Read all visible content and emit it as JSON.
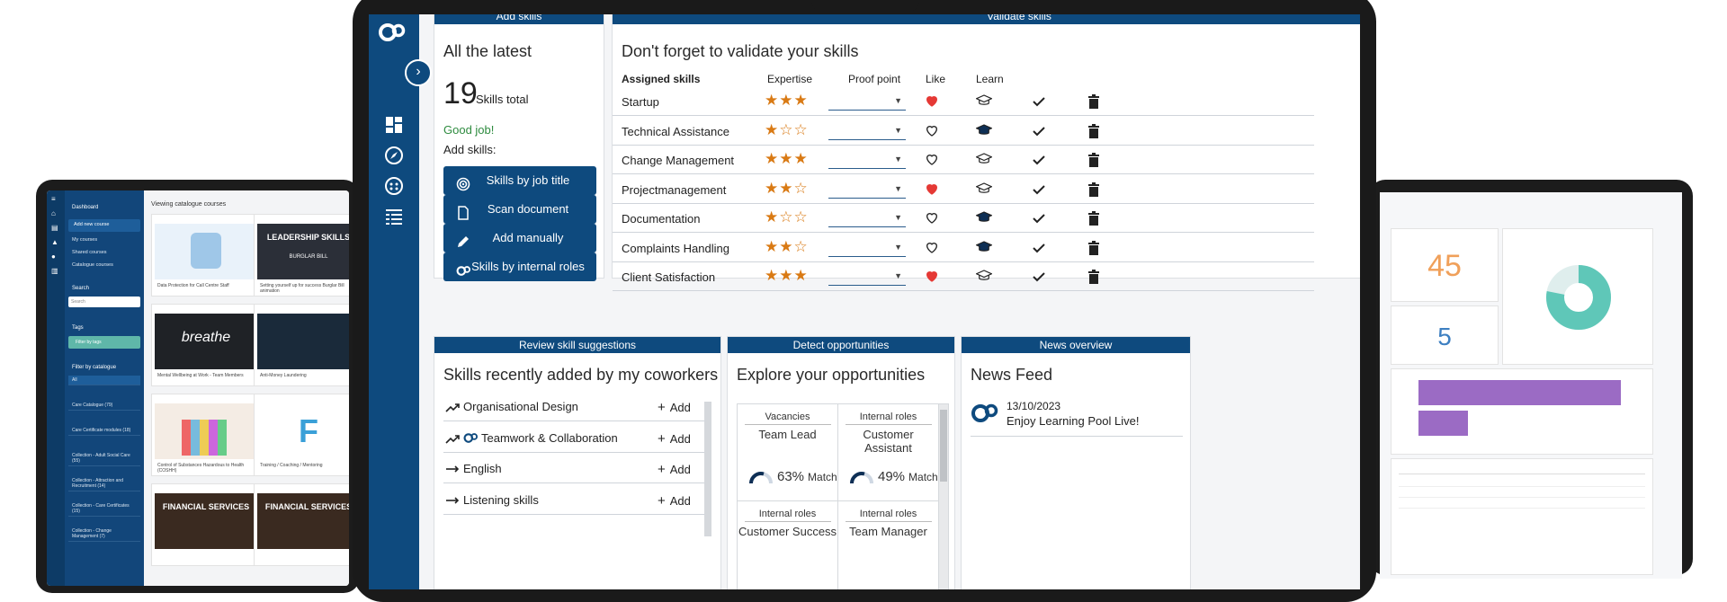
{
  "left": {
    "sidebar": {
      "dashboard": "Dashboard",
      "add_new_course": "Add new course",
      "my_courses": "My courses",
      "shared_courses": "Shared courses",
      "catalogue_courses": "Catalogue courses",
      "search_label": "Search",
      "search_placeholder": "Search",
      "tags_label": "Tags",
      "filter_by_tags": "Filter by tags",
      "filter_by_catalogue": "Filter by catalogue",
      "catalogues": [
        "All",
        "Care Catalogue (79)",
        "Care Certificate modules (18)",
        "Collection - Adult Social Care (55)",
        "Collection - Attraction and Recruitment (14)",
        "Collection - Care Certificates (15)",
        "Collection - Change Management (7)"
      ]
    },
    "main": {
      "title": "Viewing catalogue courses",
      "courses": [
        {
          "title": "Data Protection for Call Centre Staff"
        },
        {
          "title": "Setting yourself up for success Burglar Bill animation",
          "art": "LEADERSHIP SKILLS",
          "art_sub": "BURGLAR BILL"
        },
        {
          "title": "Mental Wellbeing at Work - Team Members",
          "art": "breathe"
        },
        {
          "title": "Anti-Money Laundering"
        },
        {
          "title": "Control of Substances Hazardous to Health (COSHH)"
        },
        {
          "title": "Training / Coaching / Mentoring"
        },
        {
          "title": "",
          "art": "FINANCIAL SERVICES"
        },
        {
          "title": "",
          "art": "FINANCIAL SERVICES"
        }
      ]
    }
  },
  "right": {
    "kpi1": "45",
    "kpi2": "5",
    "donut_fill": 0.78,
    "bars": [
      0.9,
      0.22
    ]
  },
  "tablet": {
    "add_skills": {
      "header": "Add skills",
      "heading": "All the latest",
      "total": "19",
      "total_label": "Skills total",
      "praise": "Good job!",
      "add_label": "Add skills:",
      "buttons": [
        {
          "label": "Skills by job title",
          "icon": "target-icon"
        },
        {
          "label": "Scan document",
          "icon": "document-icon"
        },
        {
          "label": "Add manually",
          "icon": "pencil-icon"
        },
        {
          "label": "Skills by internal roles",
          "icon": "logo-icon"
        }
      ]
    },
    "validate": {
      "header": "Validate skills",
      "heading": "Don't forget to validate your skills",
      "columns": [
        "Assigned skills",
        "Expertise",
        "Proof point",
        "Like",
        "Learn"
      ],
      "rows": [
        {
          "name": "Startup",
          "stars": "★★★",
          "liked": true,
          "learn_filled": false
        },
        {
          "name": "Technical Assistance",
          "stars": "★☆☆",
          "liked": false,
          "learn_filled": true
        },
        {
          "name": "Change Management",
          "stars": "★★★",
          "liked": false,
          "learn_filled": false
        },
        {
          "name": "Projectmanagement",
          "stars": "★★☆",
          "liked": true,
          "learn_filled": false
        },
        {
          "name": "Documentation",
          "stars": "★☆☆",
          "liked": false,
          "learn_filled": true
        },
        {
          "name": "Complaints Handling",
          "stars": "★★☆",
          "liked": false,
          "learn_filled": true
        },
        {
          "name": "Client Satisfaction",
          "stars": "★★★",
          "liked": true,
          "learn_filled": false
        }
      ]
    },
    "review": {
      "header": "Review skill suggestions",
      "heading": "Skills recently added by my coworkers",
      "add_label": "Add",
      "items": [
        {
          "name": "Organisational Design",
          "trend": "up"
        },
        {
          "name": "Teamwork & Collaboration",
          "trend": "up"
        },
        {
          "name": "English",
          "trend": "flat"
        },
        {
          "name": "Listening skills",
          "trend": "flat"
        }
      ]
    },
    "opportunities": {
      "header": "Detect opportunities",
      "heading": "Explore your opportunities",
      "match_label": "Match",
      "items": [
        {
          "kind": "Vacancies",
          "role": "Team Lead",
          "pct": "63%"
        },
        {
          "kind": "Internal roles",
          "role": "Customer Assistant",
          "pct": "49%"
        },
        {
          "kind": "Internal roles",
          "role": "Customer Success",
          "pct": ""
        },
        {
          "kind": "Internal roles",
          "role": "Team Manager",
          "pct": ""
        }
      ]
    },
    "news": {
      "header": "News overview",
      "heading": "News Feed",
      "date": "13/10/2023",
      "text": "Enjoy Learning Pool Live!"
    }
  },
  "colors": {
    "brand": "#0e4a7e",
    "star": "#d97a14",
    "heart": "#e53935",
    "teal": "#5fc7b8",
    "purple": "#9b6bc4",
    "orange": "#f0a05a"
  }
}
